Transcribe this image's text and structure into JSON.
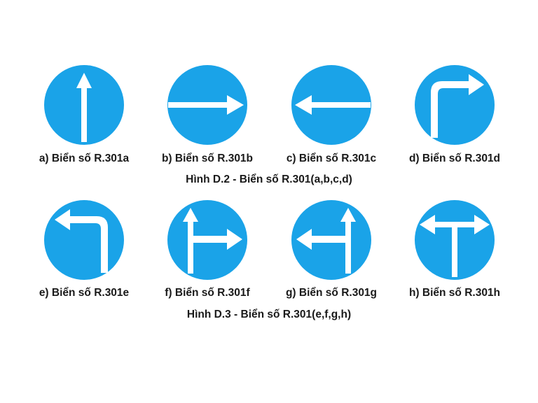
{
  "colors": {
    "sign_blue": "#1aa3e8",
    "arrow_white": "#ffffff",
    "text": "#1a1a1a"
  },
  "figure_d2": {
    "caption": "Hình D.2 - Biển số R.301(a,b,c,d)",
    "signs": [
      {
        "label": "a) Biển số R.301a",
        "icon": "arrow-straight-up-icon"
      },
      {
        "label": "b) Biển số R.301b",
        "icon": "arrow-right-icon"
      },
      {
        "label": "c) Biển số R.301c",
        "icon": "arrow-left-icon"
      },
      {
        "label": "d) Biển số R.301d",
        "icon": "arrow-up-then-right-icon"
      }
    ]
  },
  "figure_d3": {
    "caption": "Hình D.3 - Biển số R.301(e,f,g,h)",
    "signs": [
      {
        "label": "e) Biển số R.301e",
        "icon": "arrow-up-then-left-icon"
      },
      {
        "label": "f) Biển số R.301f",
        "icon": "arrow-straight-or-right-icon"
      },
      {
        "label": "g) Biển số R.301g",
        "icon": "arrow-straight-or-left-icon"
      },
      {
        "label": "h) Biển số R.301h",
        "icon": "arrow-left-or-right-icon"
      }
    ]
  }
}
